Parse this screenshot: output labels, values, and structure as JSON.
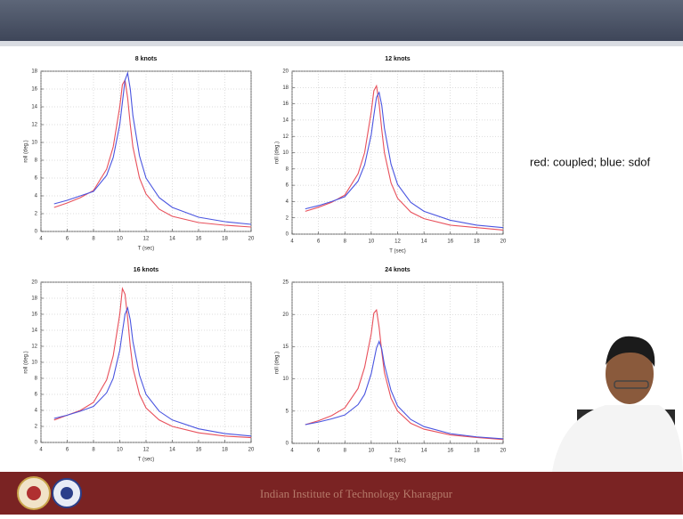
{
  "chart_data": [
    {
      "type": "line",
      "title": "8 knots",
      "x_label": "T (sec)",
      "y_label": "roll (deg.)",
      "x": [
        5,
        6,
        7,
        8,
        9,
        9.5,
        10,
        10.2,
        10.4,
        10.6,
        10.8,
        11,
        11.5,
        12,
        13,
        14,
        16,
        18,
        20
      ],
      "series": [
        {
          "color": "#e8505b",
          "values": [
            2.7,
            3.2,
            3.8,
            4.6,
            7,
            9.5,
            14,
            16.5,
            17,
            15,
            12,
            9.5,
            6,
            4.2,
            2.5,
            1.7,
            1,
            0.7,
            0.5
          ]
        },
        {
          "color": "#4a55e0",
          "values": [
            3.1,
            3.5,
            4,
            4.5,
            6.3,
            8.3,
            12,
            14.5,
            17,
            17.8,
            16,
            13,
            8.5,
            6,
            3.8,
            2.7,
            1.6,
            1.1,
            0.8
          ]
        }
      ],
      "xlim": [
        4,
        20
      ],
      "xticks": [
        4,
        6,
        8,
        10,
        12,
        14,
        16,
        18,
        20
      ],
      "ylim": [
        0,
        18
      ],
      "yticks": [
        0,
        2,
        4,
        6,
        8,
        10,
        12,
        14,
        16,
        18
      ],
      "grid": true
    },
    {
      "type": "line",
      "title": "12 knots",
      "x_label": "T (sec)",
      "y_label": "roll (deg.)",
      "x": [
        5,
        6,
        7,
        8,
        9,
        9.5,
        10,
        10.2,
        10.4,
        10.6,
        10.8,
        11,
        11.5,
        12,
        13,
        14,
        16,
        18,
        20
      ],
      "series": [
        {
          "color": "#e8505b",
          "values": [
            2.8,
            3.3,
            3.9,
            4.8,
            7.4,
            10,
            15,
            17.6,
            18.2,
            16,
            12.8,
            10,
            6.3,
            4.4,
            2.7,
            1.9,
            1.1,
            0.8,
            0.5
          ]
        },
        {
          "color": "#4a55e0",
          "values": [
            3.1,
            3.5,
            4,
            4.6,
            6.5,
            8.5,
            12.2,
            14.6,
            16.8,
            17.4,
            15.8,
            13,
            8.6,
            6.1,
            3.9,
            2.8,
            1.7,
            1.1,
            0.8
          ]
        }
      ],
      "xlim": [
        4,
        20
      ],
      "xticks": [
        4,
        6,
        8,
        10,
        12,
        14,
        16,
        18,
        20
      ],
      "ylim": [
        0,
        20
      ],
      "yticks": [
        0,
        2,
        4,
        6,
        8,
        10,
        12,
        14,
        16,
        18,
        20
      ],
      "grid": true
    },
    {
      "type": "line",
      "title": "16 knots",
      "x_label": "T (sec)",
      "y_label": "roll (deg.)",
      "x": [
        5,
        6,
        7,
        8,
        9,
        9.5,
        10,
        10.2,
        10.4,
        10.6,
        10.8,
        11,
        11.5,
        12,
        13,
        14,
        16,
        18,
        20
      ],
      "series": [
        {
          "color": "#e8505b",
          "values": [
            2.8,
            3.4,
            4,
            5,
            7.8,
            10.8,
            16,
            19.2,
            18.5,
            15.5,
            12,
            9.3,
            6,
            4.3,
            2.8,
            2,
            1.2,
            0.8,
            0.6
          ]
        },
        {
          "color": "#4a55e0",
          "values": [
            3,
            3.4,
            3.9,
            4.5,
            6.2,
            8,
            11.5,
            13.8,
            16,
            16.8,
            15.3,
            12.6,
            8.4,
            6,
            3.9,
            2.8,
            1.7,
            1.1,
            0.8
          ]
        }
      ],
      "xlim": [
        4,
        20
      ],
      "xticks": [
        4,
        6,
        8,
        10,
        12,
        14,
        16,
        18,
        20
      ],
      "ylim": [
        0,
        20
      ],
      "yticks": [
        0,
        2,
        4,
        6,
        8,
        10,
        12,
        14,
        16,
        18,
        20
      ],
      "grid": true
    },
    {
      "type": "line",
      "title": "24 knots",
      "x_label": "T (sec)",
      "y_label": "roll (deg.)",
      "x": [
        5,
        6,
        7,
        8,
        9,
        9.5,
        10,
        10.2,
        10.4,
        10.6,
        10.8,
        11,
        11.5,
        12,
        13,
        14,
        16,
        18,
        20
      ],
      "series": [
        {
          "color": "#e8505b",
          "values": [
            2.9,
            3.5,
            4.3,
            5.5,
            8.5,
            11.8,
            17,
            20.2,
            20.7,
            18,
            14.2,
            11,
            7,
            5,
            3.1,
            2.2,
            1.3,
            0.9,
            0.6
          ]
        },
        {
          "color": "#4a55e0",
          "values": [
            2.9,
            3.3,
            3.8,
            4.4,
            6,
            7.6,
            10.8,
            12.8,
            14.8,
            15.8,
            14.6,
            12.2,
            8.2,
            5.8,
            3.7,
            2.6,
            1.5,
            1,
            0.7
          ]
        }
      ],
      "xlim": [
        4,
        20
      ],
      "xticks": [
        4,
        6,
        8,
        10,
        12,
        14,
        16,
        18,
        20
      ],
      "ylim": [
        0,
        25
      ],
      "yticks": [
        0,
        5,
        10,
        15,
        20,
        25
      ],
      "grid": true
    }
  ],
  "annotation": "red: coupled; blue: sdof",
  "footer": "Indian Institute of Technology Kharagpur"
}
